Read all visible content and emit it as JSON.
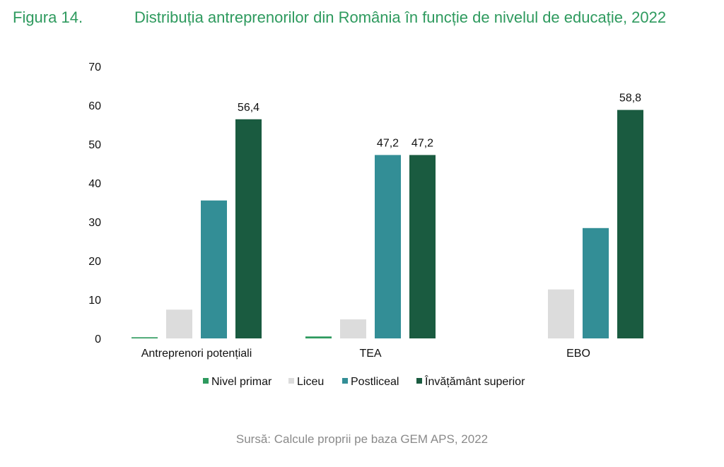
{
  "figure_number": "Figura 14.",
  "source": "Sursă: Calcule proprii pe baza GEM APS, 2022",
  "colors": {
    "title": "#2e9a5e",
    "nivel_primar": "#2e9a5e",
    "liceu": "#dcdcdc",
    "postliceal": "#338e96",
    "superior": "#1a5b40"
  },
  "chart_data": {
    "type": "bar",
    "title": "Distribuția antreprenorilor din România în funcție de nivelul de educație, 2022",
    "xlabel": "",
    "ylabel": "",
    "ylim": [
      0,
      70
    ],
    "yticks": [
      0,
      10,
      20,
      30,
      40,
      50,
      60,
      70
    ],
    "categories": [
      "Antreprenori potențiali",
      "TEA",
      "EBO"
    ],
    "series": [
      {
        "name": "Nivel primar",
        "values": [
          0.3,
          0.5,
          0
        ]
      },
      {
        "name": "Liceu",
        "values": [
          7.4,
          4.9,
          12.6
        ]
      },
      {
        "name": "Postliceal",
        "values": [
          35.5,
          47.2,
          28.4
        ]
      },
      {
        "name": "Învățământ superior",
        "values": [
          56.4,
          47.2,
          58.8
        ]
      }
    ],
    "data_labels": [
      {
        "series": 2,
        "category": 1,
        "text": "47,2"
      },
      {
        "series": 3,
        "category": 0,
        "text": "56,4"
      },
      {
        "series": 3,
        "category": 1,
        "text": "47,2"
      },
      {
        "series": 3,
        "category": 2,
        "text": "58,8"
      }
    ],
    "legend_position": "bottom"
  }
}
